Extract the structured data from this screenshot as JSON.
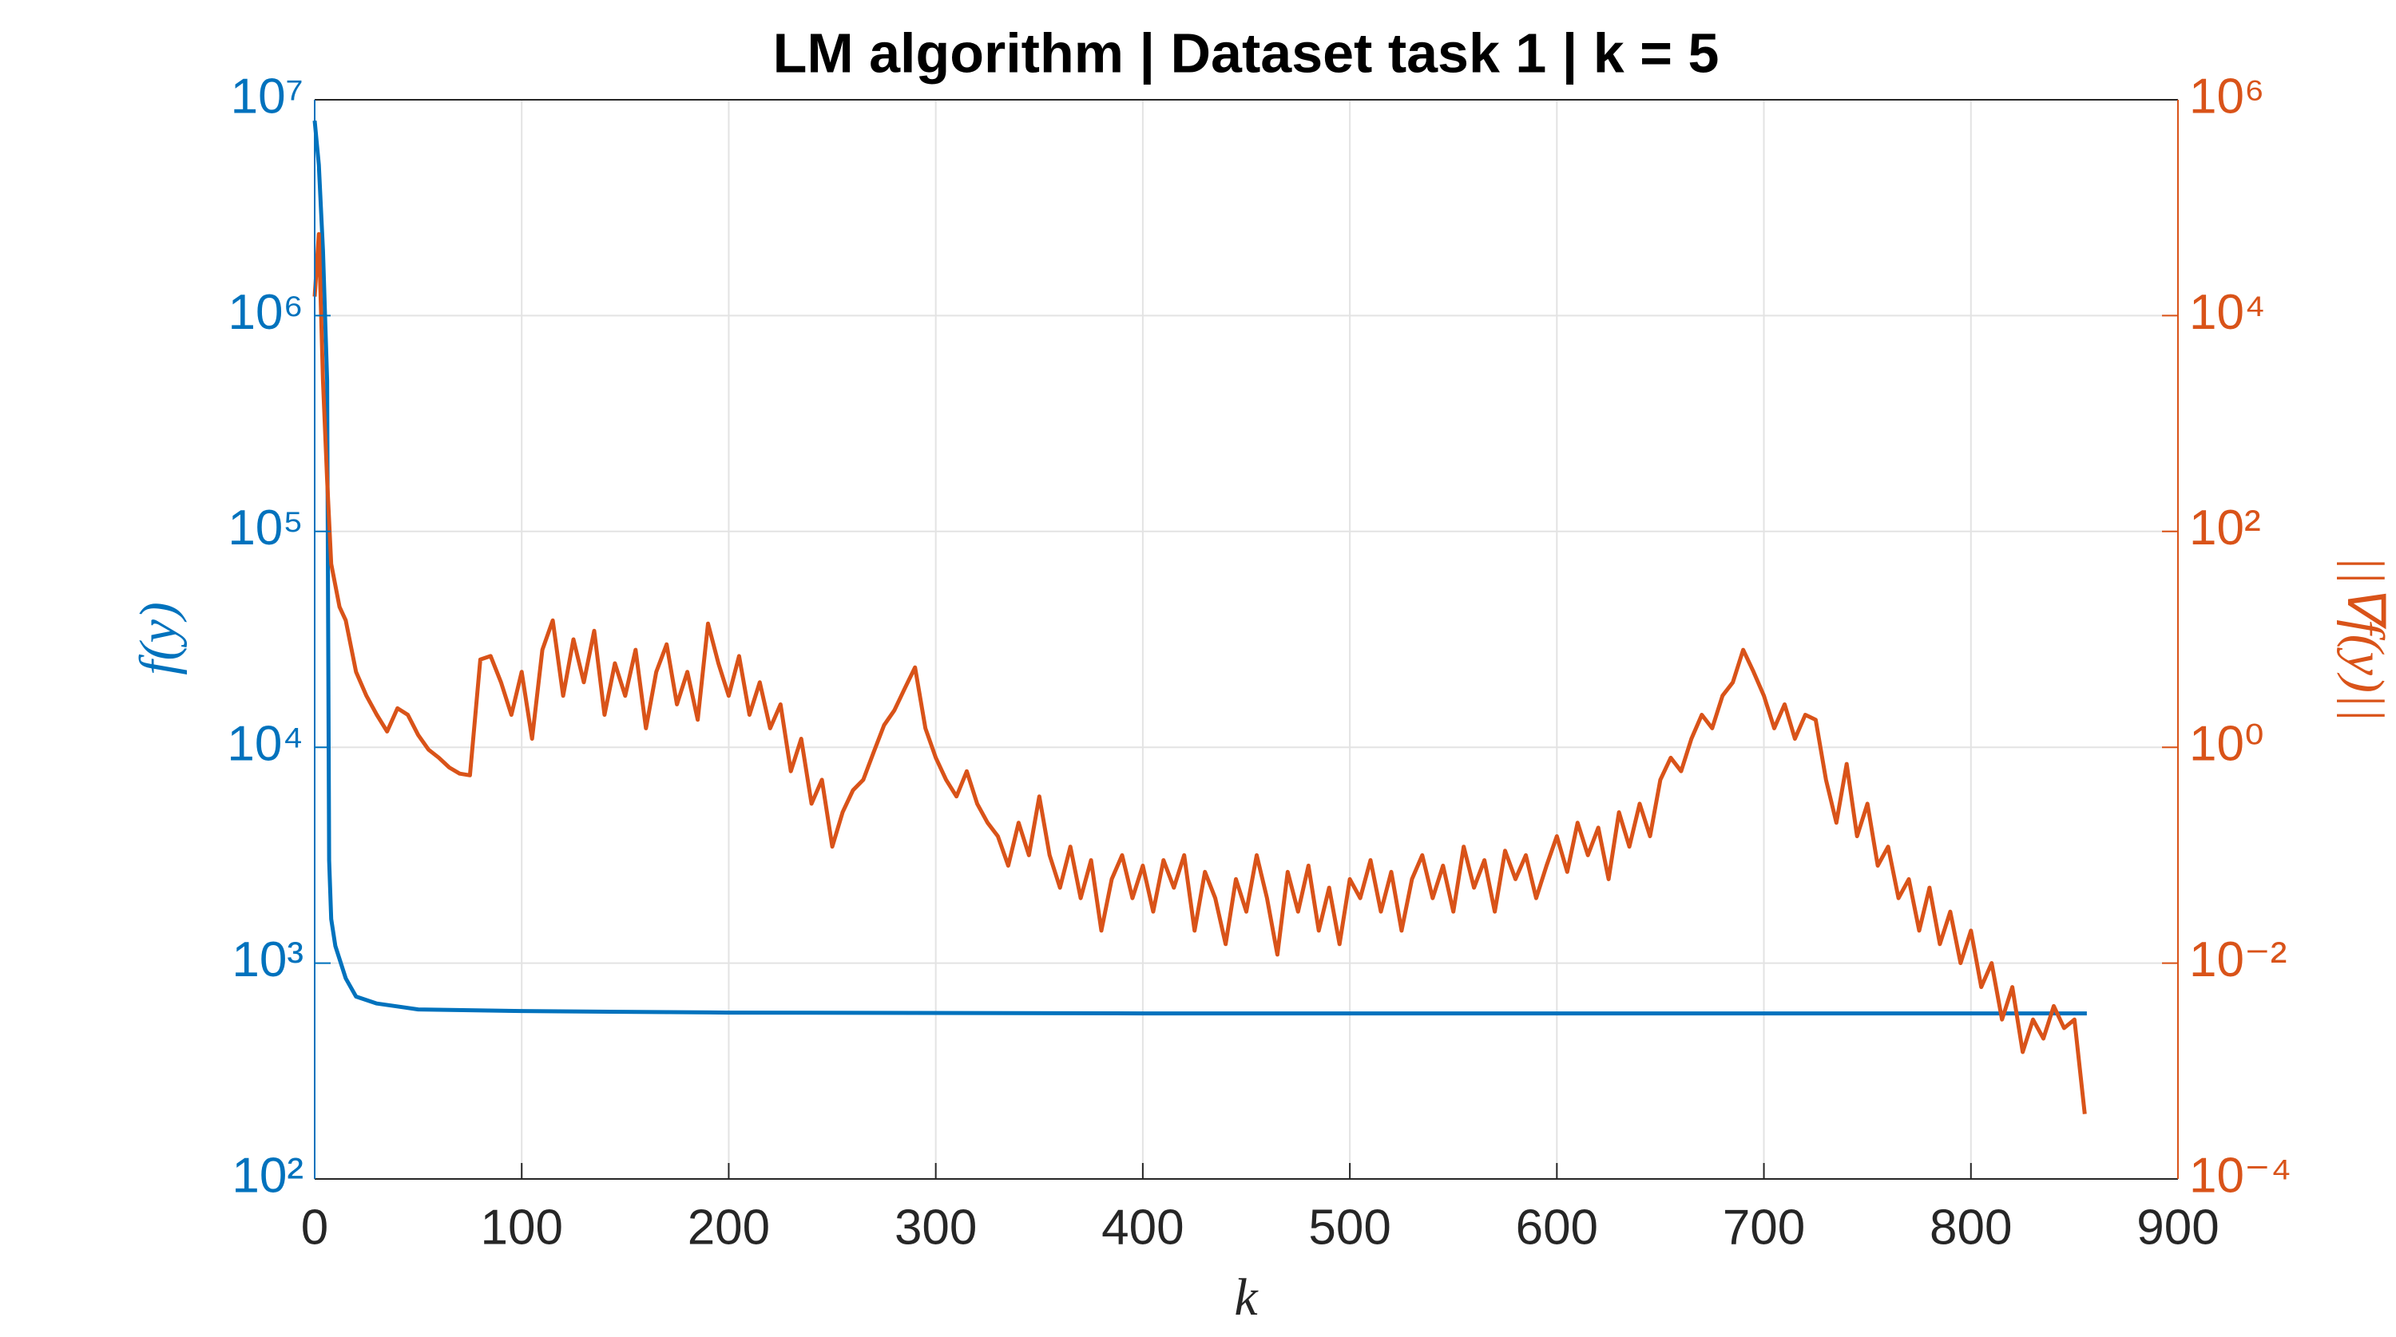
{
  "chart_data": {
    "type": "line",
    "title": "LM algorithm | Dataset task 1 | k = 5",
    "x_label": "k",
    "y_label": "f(y)",
    "y2_label": "||∇f(y)||",
    "log_y": true,
    "log_y2": true,
    "grid": true,
    "xlim": [
      0,
      900
    ],
    "xticks": [
      0,
      100,
      200,
      300,
      400,
      500,
      600,
      700,
      800,
      900
    ],
    "ylim": [
      100,
      10000000
    ],
    "yticks": [
      {
        "value": 100,
        "label": "10²"
      },
      {
        "value": 1000,
        "label": "10³"
      },
      {
        "value": 10000,
        "label": "10⁴"
      },
      {
        "value": 100000,
        "label": "10⁵"
      },
      {
        "value": 1000000,
        "label": "10⁶"
      },
      {
        "value": 10000000,
        "label": "10⁷"
      }
    ],
    "y2lim": [
      0.0001,
      1000000
    ],
    "y2ticks": [
      {
        "value": 0.0001,
        "label": "10⁻⁴"
      },
      {
        "value": 0.01,
        "label": "10⁻²"
      },
      {
        "value": 1,
        "label": "10⁰"
      },
      {
        "value": 100,
        "label": "10²"
      },
      {
        "value": 10000,
        "label": "10⁴"
      },
      {
        "value": 1000000,
        "label": "10⁶"
      }
    ],
    "series": [
      {
        "axis": "y",
        "color": "#0072BD",
        "x": [
          0,
          2,
          4,
          6,
          7,
          8,
          10,
          15,
          20,
          30,
          50,
          100,
          200,
          400,
          600,
          856
        ],
        "values": [
          8000000,
          5000000,
          2000000,
          500000,
          3000,
          1600,
          1200,
          850,
          700,
          650,
          610,
          600,
          590,
          585,
          585,
          585
        ]
      },
      {
        "axis": "y2",
        "color": "#D95319",
        "x": [
          0,
          2,
          4,
          6,
          8,
          12,
          15,
          20,
          25,
          30,
          35,
          40,
          45,
          50,
          55,
          60,
          65,
          70,
          75,
          80,
          85,
          90,
          95,
          100,
          105,
          110,
          115,
          120,
          125,
          130,
          135,
          140,
          145,
          150,
          155,
          160,
          165,
          170,
          175,
          180,
          185,
          190,
          195,
          200,
          205,
          210,
          215,
          220,
          225,
          230,
          235,
          240,
          245,
          250,
          255,
          260,
          265,
          270,
          275,
          280,
          285,
          290,
          295,
          300,
          305,
          310,
          315,
          320,
          325,
          330,
          335,
          340,
          345,
          350,
          355,
          360,
          365,
          370,
          375,
          380,
          385,
          390,
          395,
          400,
          405,
          410,
          415,
          420,
          425,
          430,
          435,
          440,
          445,
          450,
          455,
          460,
          465,
          470,
          475,
          480,
          485,
          490,
          495,
          500,
          505,
          510,
          515,
          520,
          525,
          530,
          535,
          540,
          545,
          550,
          555,
          560,
          565,
          570,
          575,
          580,
          585,
          590,
          595,
          600,
          605,
          610,
          615,
          620,
          625,
          630,
          635,
          640,
          645,
          650,
          655,
          660,
          665,
          670,
          675,
          680,
          685,
          690,
          695,
          700,
          705,
          710,
          715,
          720,
          725,
          730,
          735,
          740,
          745,
          750,
          755,
          760,
          765,
          770,
          775,
          780,
          785,
          790,
          795,
          800,
          805,
          810,
          815,
          820,
          825,
          830,
          835,
          840,
          845,
          850,
          855
        ],
        "values": [
          15000,
          57000,
          2500,
          300,
          50,
          20,
          15,
          5,
          3,
          2,
          1.4,
          2.3,
          2,
          1.3,
          0.95,
          0.8,
          0.65,
          0.57,
          0.55,
          6.5,
          7,
          4,
          2,
          5,
          1.2,
          8,
          15,
          3,
          10,
          4,
          12,
          2,
          6,
          3,
          8,
          1.5,
          5,
          9,
          2.5,
          5,
          1.8,
          14,
          6,
          3,
          7,
          2,
          4,
          1.5,
          2.5,
          0.6,
          1.2,
          0.3,
          0.5,
          0.12,
          0.25,
          0.4,
          0.5,
          0.9,
          1.6,
          2.2,
          3.5,
          5.5,
          1.5,
          0.8,
          0.5,
          0.35,
          0.6,
          0.3,
          0.2,
          0.15,
          0.08,
          0.2,
          0.1,
          0.35,
          0.1,
          0.05,
          0.12,
          0.04,
          0.09,
          0.02,
          0.06,
          0.1,
          0.04,
          0.08,
          0.03,
          0.09,
          0.05,
          0.1,
          0.02,
          0.07,
          0.04,
          0.015,
          0.06,
          0.03,
          0.1,
          0.04,
          0.012,
          0.07,
          0.03,
          0.08,
          0.02,
          0.05,
          0.015,
          0.06,
          0.04,
          0.09,
          0.03,
          0.07,
          0.02,
          0.06,
          0.1,
          0.04,
          0.08,
          0.03,
          0.12,
          0.05,
          0.09,
          0.03,
          0.11,
          0.06,
          0.1,
          0.04,
          0.08,
          0.15,
          0.07,
          0.2,
          0.1,
          0.18,
          0.06,
          0.25,
          0.12,
          0.3,
          0.15,
          0.5,
          0.8,
          0.6,
          1.2,
          2,
          1.5,
          3,
          4,
          8,
          5,
          3,
          1.5,
          2.5,
          1.2,
          2,
          1.8,
          0.5,
          0.2,
          0.7,
          0.15,
          0.3,
          0.08,
          0.12,
          0.04,
          0.06,
          0.02,
          0.05,
          0.015,
          0.03,
          0.01,
          0.02,
          0.006,
          0.01,
          0.003,
          0.006,
          0.0015,
          0.003,
          0.002,
          0.004,
          0.0025,
          0.003,
          0.0004
        ]
      }
    ]
  }
}
